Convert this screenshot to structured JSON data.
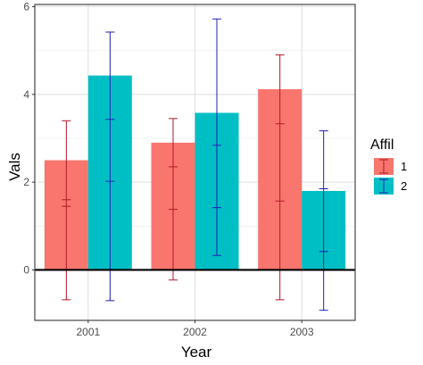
{
  "chart_data": {
    "type": "bar",
    "title": "",
    "xlabel": "Year",
    "ylabel": "Vals",
    "categories": [
      "2001",
      "2002",
      "2003"
    ],
    "ylim": [
      -1.15,
      6.05
    ],
    "yticks": [
      0,
      2,
      4,
      6
    ],
    "grid": true,
    "hline": 0,
    "legend": {
      "title": "Affil",
      "position": "right"
    },
    "series": [
      {
        "name": "1",
        "color": "#F8766D",
        "errorbar_color": "#B2182B",
        "values": [
          2.5,
          2.9,
          4.12
        ],
        "error_upper": [
          3.4,
          3.45,
          4.9
        ],
        "error_lower": [
          -0.68,
          -0.23,
          -0.68
        ],
        "error_inner": [
          [
            1.6,
            1.45
          ],
          [
            2.35,
            1.38
          ],
          [
            3.33,
            1.57
          ]
        ]
      },
      {
        "name": "2",
        "color": "#00BFC4",
        "errorbar_color": "#1F1FB5",
        "values": [
          4.43,
          3.58,
          1.8
        ],
        "error_upper": [
          5.42,
          5.72,
          3.17
        ],
        "error_lower": [
          -0.7,
          0.33,
          -0.92
        ],
        "error_inner": [
          [
            3.43,
            2.02
          ],
          [
            2.84,
            1.42
          ],
          [
            1.85,
            0.42
          ]
        ]
      }
    ]
  }
}
